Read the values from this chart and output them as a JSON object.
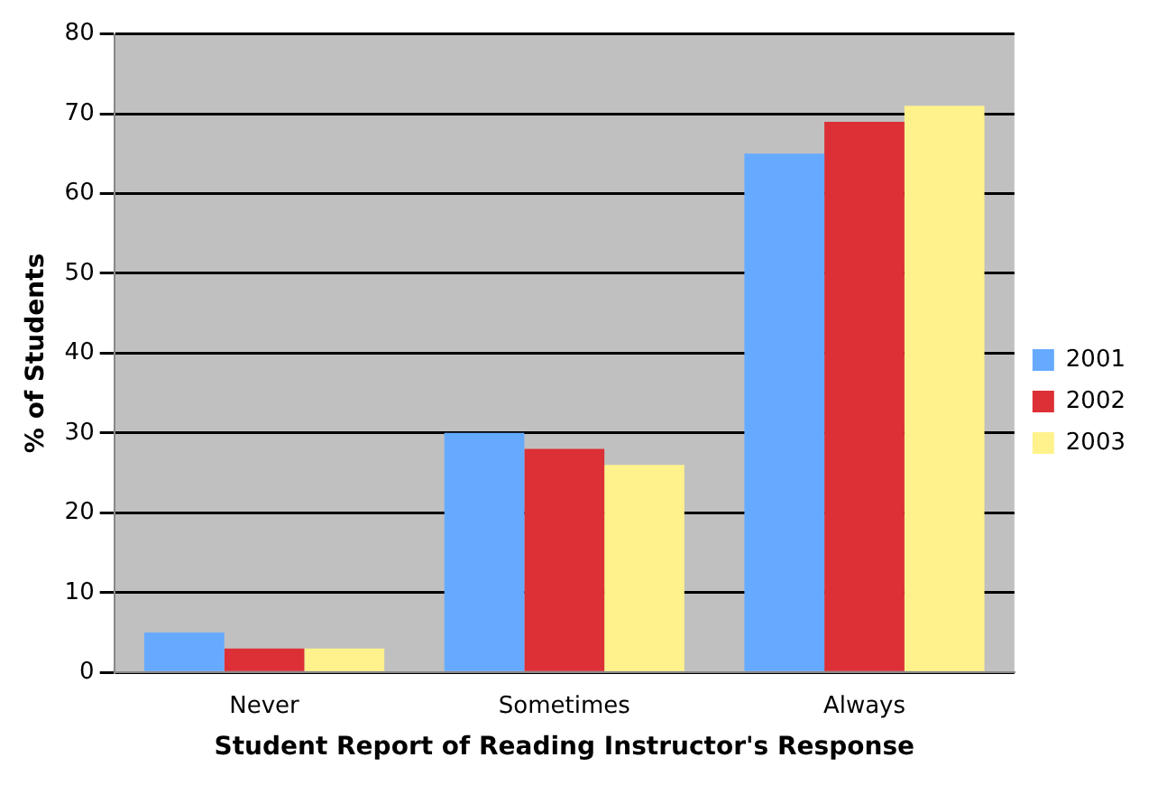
{
  "chart_data": {
    "type": "bar",
    "xlabel": "Student Report of Reading Instructor's Response",
    "ylabel": "% of Students",
    "categories": [
      "Never",
      "Sometimes",
      "Always"
    ],
    "series": [
      {
        "name": "2001",
        "color": "#66aaff",
        "values": [
          5,
          30,
          65
        ]
      },
      {
        "name": "2002",
        "color": "#dd2f36",
        "values": [
          3,
          28,
          69
        ]
      },
      {
        "name": "2003",
        "color": "#fff28c",
        "values": [
          3,
          26,
          71
        ]
      }
    ],
    "ylim": [
      0,
      80
    ],
    "yticks": [
      0,
      10,
      20,
      30,
      40,
      50,
      60,
      70,
      80
    ],
    "grid": "y",
    "legend": "right"
  }
}
